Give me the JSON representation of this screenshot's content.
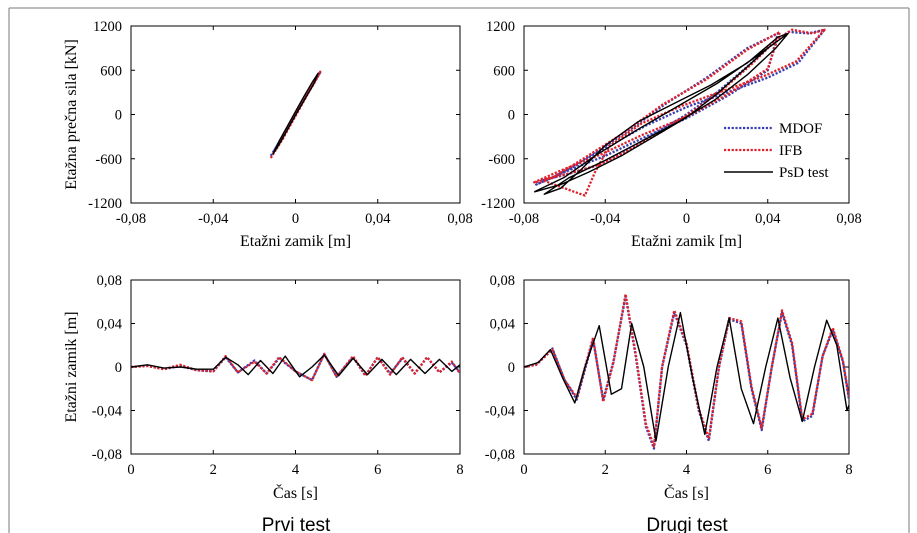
{
  "colors": {
    "mdof": "#3a3fb0",
    "ifb": "#e0202a",
    "psd": "#000000",
    "axes": "#000000"
  },
  "captions": {
    "left": "Prvi test",
    "right": "Drugi test"
  },
  "chart_data": [
    {
      "id": "hysteresis-prvi",
      "type": "line",
      "xlabel": "Etažni zamik [m]",
      "ylabel": "Etažna prečna sila [kN]",
      "xlim": [
        -0.08,
        0.08
      ],
      "ylim": [
        -1200,
        1200
      ],
      "xticks": [
        "-0,08",
        "-0,04",
        "0",
        "0,04",
        "0,08"
      ],
      "yticks": [
        "1200",
        "600",
        "0",
        "-600",
        "-1200"
      ],
      "series": [
        {
          "key": "mdof",
          "x": [
            -0.012,
            -0.008,
            -0.004,
            0.0,
            0.004,
            0.008,
            0.012,
            0.009,
            0.005,
            0.001,
            -0.003,
            -0.007,
            -0.011
          ],
          "y": [
            -560,
            -380,
            -180,
            20,
            200,
            380,
            570,
            450,
            260,
            60,
            -140,
            -330,
            -520
          ]
        },
        {
          "key": "ifb",
          "x": [
            -0.012,
            -0.008,
            -0.004,
            0.0,
            0.004,
            0.008,
            0.012,
            0.01,
            0.006,
            0.002,
            -0.002,
            -0.006,
            -0.01
          ],
          "y": [
            -590,
            -400,
            -200,
            0,
            190,
            390,
            580,
            470,
            280,
            80,
            -120,
            -320,
            -500
          ]
        },
        {
          "key": "psd",
          "x": [
            -0.011,
            -0.007,
            -0.003,
            0.001,
            0.005,
            0.009,
            0.011,
            0.008,
            0.004,
            0.0,
            -0.004,
            -0.008,
            -0.011
          ],
          "y": [
            -540,
            -360,
            -160,
            40,
            230,
            420,
            560,
            430,
            240,
            40,
            -160,
            -360,
            -540
          ]
        }
      ]
    },
    {
      "id": "hysteresis-drugi",
      "type": "line",
      "xlabel": "Etažni zamik [m]",
      "ylabel": "",
      "xlim": [
        -0.08,
        0.08
      ],
      "ylim": [
        -1200,
        1200
      ],
      "xticks": [
        "-0,08",
        "-0,04",
        "0",
        "0,04",
        "0,08"
      ],
      "yticks": [
        "1200",
        "600",
        "0",
        "-600",
        "-1200"
      ],
      "legend": {
        "position": "right",
        "entries": [
          "MDOF",
          "IFB",
          "PsD test"
        ]
      },
      "series": [
        {
          "key": "mdof",
          "name": "MDOF",
          "x": [
            -0.072,
            -0.06,
            -0.045,
            -0.03,
            -0.015,
            0.0,
            0.015,
            0.03,
            0.042,
            0.05,
            0.06,
            0.068,
            0.055,
            0.04,
            0.02,
            0.0,
            -0.02,
            -0.04,
            -0.055,
            -0.068,
            -0.074,
            -0.06,
            -0.04,
            -0.02,
            0.0,
            0.02,
            0.04,
            0.045,
            0.03,
            0.01,
            -0.01,
            -0.03,
            -0.05,
            -0.065,
            -0.072
          ],
          "y": [
            -900,
            -820,
            -700,
            -500,
            -250,
            0,
            300,
            650,
            950,
            1120,
            1100,
            1150,
            700,
            500,
            300,
            100,
            -150,
            -450,
            -700,
            -880,
            -950,
            -780,
            -560,
            -300,
            -50,
            250,
            600,
            1100,
            900,
            500,
            150,
            -250,
            -600,
            -850,
            -900
          ]
        },
        {
          "key": "ifb",
          "name": "IFB",
          "x": [
            -0.07,
            -0.058,
            -0.043,
            -0.028,
            -0.012,
            0.002,
            0.017,
            0.032,
            0.043,
            0.052,
            0.062,
            0.068,
            0.054,
            0.038,
            0.018,
            -0.002,
            -0.022,
            -0.038,
            -0.045,
            -0.05,
            -0.06,
            -0.07,
            -0.075,
            -0.062,
            -0.042,
            -0.022,
            0.0,
            0.02,
            0.04,
            0.046,
            0.03,
            0.01,
            -0.012,
            -0.032,
            -0.052,
            -0.066,
            -0.07
          ],
          "y": [
            -880,
            -800,
            -680,
            -480,
            -230,
            20,
            320,
            680,
            980,
            1150,
            1100,
            1150,
            720,
            520,
            320,
            120,
            -120,
            -430,
            -780,
            -1100,
            -1000,
            -900,
            -920,
            -760,
            -540,
            -280,
            -30,
            270,
            620,
            1120,
            880,
            480,
            130,
            -270,
            -620,
            -860,
            -880
          ]
        },
        {
          "key": "psd",
          "name": "PsD test",
          "x": [
            -0.075,
            -0.062,
            -0.048,
            -0.032,
            -0.016,
            0.0,
            0.015,
            0.028,
            0.04,
            0.05,
            0.045,
            0.03,
            0.012,
            -0.006,
            -0.024,
            -0.04,
            -0.052,
            -0.062,
            -0.07,
            -0.058,
            -0.04,
            -0.022,
            -0.004,
            0.014,
            0.03,
            0.044,
            0.05,
            0.035,
            0.015,
            -0.005,
            -0.025,
            -0.045,
            -0.06,
            -0.075
          ],
          "y": [
            -1050,
            -950,
            -780,
            -560,
            -300,
            -40,
            280,
            600,
            900,
            1100,
            1050,
            700,
            400,
            150,
            -100,
            -420,
            -750,
            -1000,
            -1080,
            -860,
            -620,
            -360,
            -100,
            200,
            540,
            900,
            1100,
            800,
            420,
            100,
            -220,
            -560,
            -850,
            -1050
          ]
        }
      ]
    },
    {
      "id": "drift-prvi",
      "type": "line",
      "xlabel": "Čas [s]",
      "ylabel": "Etažni zamik [m]",
      "xlim": [
        0,
        8
      ],
      "ylim": [
        -0.08,
        0.08
      ],
      "xticks": [
        "0",
        "2",
        "4",
        "6",
        "8"
      ],
      "yticks": [
        "0,08",
        "0,04",
        "0",
        "-0,04",
        "-0,08"
      ],
      "series": [
        {
          "key": "mdof",
          "x": [
            0.0,
            0.4,
            0.8,
            1.2,
            1.6,
            2.0,
            2.3,
            2.6,
            3.0,
            3.3,
            3.6,
            4.0,
            4.4,
            4.7,
            5.0,
            5.4,
            5.7,
            6.0,
            6.3,
            6.6,
            6.9,
            7.2,
            7.5,
            7.8,
            8.0
          ],
          "y": [
            0.0,
            0.001,
            -0.002,
            0.001,
            -0.003,
            -0.004,
            0.009,
            -0.005,
            0.006,
            -0.006,
            0.008,
            -0.004,
            -0.012,
            0.012,
            -0.009,
            0.009,
            -0.008,
            0.009,
            -0.006,
            0.008,
            -0.006,
            0.009,
            -0.005,
            0.004,
            -0.005
          ]
        },
        {
          "key": "ifb",
          "x": [
            0.0,
            0.4,
            0.8,
            1.2,
            1.6,
            2.0,
            2.3,
            2.6,
            3.0,
            3.3,
            3.6,
            4.0,
            4.4,
            4.7,
            5.0,
            5.4,
            5.7,
            6.0,
            6.3,
            6.6,
            6.9,
            7.2,
            7.5,
            7.8,
            8.0
          ],
          "y": [
            0.0,
            0.001,
            -0.002,
            0.002,
            -0.003,
            -0.004,
            0.01,
            -0.005,
            0.005,
            -0.006,
            0.009,
            -0.004,
            -0.012,
            0.012,
            -0.009,
            0.01,
            -0.008,
            0.009,
            -0.007,
            0.009,
            -0.006,
            0.009,
            -0.005,
            0.005,
            -0.006
          ]
        },
        {
          "key": "psd",
          "x": [
            0.0,
            0.4,
            0.8,
            1.2,
            1.6,
            2.0,
            2.3,
            2.6,
            2.85,
            3.15,
            3.45,
            3.75,
            4.1,
            4.4,
            4.7,
            5.05,
            5.4,
            5.75,
            6.1,
            6.45,
            6.8,
            7.15,
            7.5,
            7.8,
            8.0
          ],
          "y": [
            0.0,
            0.002,
            -0.001,
            0.0,
            -0.002,
            -0.002,
            0.009,
            0.002,
            -0.007,
            0.006,
            -0.006,
            0.01,
            -0.009,
            0.0,
            0.011,
            -0.008,
            0.008,
            -0.007,
            0.007,
            -0.007,
            0.007,
            -0.006,
            0.007,
            -0.004,
            0.002
          ]
        }
      ]
    },
    {
      "id": "drift-drugi",
      "type": "line",
      "xlabel": "Čas [s]",
      "ylabel": "",
      "xlim": [
        0,
        8
      ],
      "ylim": [
        -0.08,
        0.08
      ],
      "xticks": [
        "0",
        "2",
        "4",
        "6",
        "8"
      ],
      "yticks": [
        "0,08",
        "0,04",
        "0",
        "-0,04",
        "-0,08"
      ],
      "series": [
        {
          "key": "mdof",
          "x": [
            0.0,
            0.3,
            0.7,
            1.0,
            1.3,
            1.7,
            1.95,
            2.2,
            2.5,
            2.75,
            3.0,
            3.2,
            3.4,
            3.7,
            4.0,
            4.3,
            4.55,
            4.8,
            5.05,
            5.35,
            5.6,
            5.85,
            6.1,
            6.35,
            6.6,
            6.85,
            7.1,
            7.35,
            7.6,
            7.85,
            8.0
          ],
          "y": [
            0.0,
            0.002,
            0.017,
            -0.012,
            -0.03,
            0.025,
            -0.03,
            0.005,
            0.065,
            0.01,
            -0.055,
            -0.075,
            0.0,
            0.05,
            0.02,
            -0.04,
            -0.068,
            0.0,
            0.044,
            0.04,
            -0.02,
            -0.058,
            0.0,
            0.05,
            0.02,
            -0.05,
            -0.045,
            0.01,
            0.034,
            0.005,
            -0.03
          ]
        },
        {
          "key": "ifb",
          "x": [
            0.0,
            0.3,
            0.7,
            1.0,
            1.3,
            1.7,
            1.95,
            2.2,
            2.5,
            2.75,
            3.0,
            3.2,
            3.4,
            3.7,
            4.0,
            4.3,
            4.55,
            4.8,
            5.05,
            5.35,
            5.6,
            5.85,
            6.1,
            6.35,
            6.6,
            6.85,
            7.1,
            7.35,
            7.6,
            7.85,
            8.0
          ],
          "y": [
            0.0,
            0.002,
            0.016,
            -0.012,
            -0.028,
            0.027,
            -0.032,
            0.004,
            0.067,
            0.012,
            -0.052,
            -0.073,
            0.0,
            0.052,
            0.022,
            -0.038,
            -0.066,
            0.0,
            0.045,
            0.042,
            -0.018,
            -0.056,
            0.0,
            0.052,
            0.022,
            -0.048,
            -0.043,
            0.01,
            0.036,
            0.006,
            -0.028
          ]
        },
        {
          "key": "psd",
          "x": [
            0.0,
            0.35,
            0.65,
            0.95,
            1.25,
            1.5,
            1.85,
            2.15,
            2.4,
            2.65,
            2.95,
            3.25,
            3.55,
            3.85,
            4.15,
            4.45,
            4.75,
            5.05,
            5.35,
            5.65,
            5.95,
            6.25,
            6.55,
            6.85,
            7.15,
            7.45,
            7.7,
            7.95,
            8.0
          ],
          "y": [
            0.0,
            0.004,
            0.016,
            -0.01,
            -0.033,
            0.0,
            0.038,
            -0.025,
            -0.02,
            0.04,
            0.0,
            -0.068,
            0.0,
            0.05,
            -0.01,
            -0.062,
            0.0,
            0.045,
            -0.02,
            -0.052,
            0.0,
            0.045,
            -0.01,
            -0.05,
            0.0,
            0.043,
            0.02,
            -0.04,
            -0.035
          ]
        }
      ]
    }
  ]
}
